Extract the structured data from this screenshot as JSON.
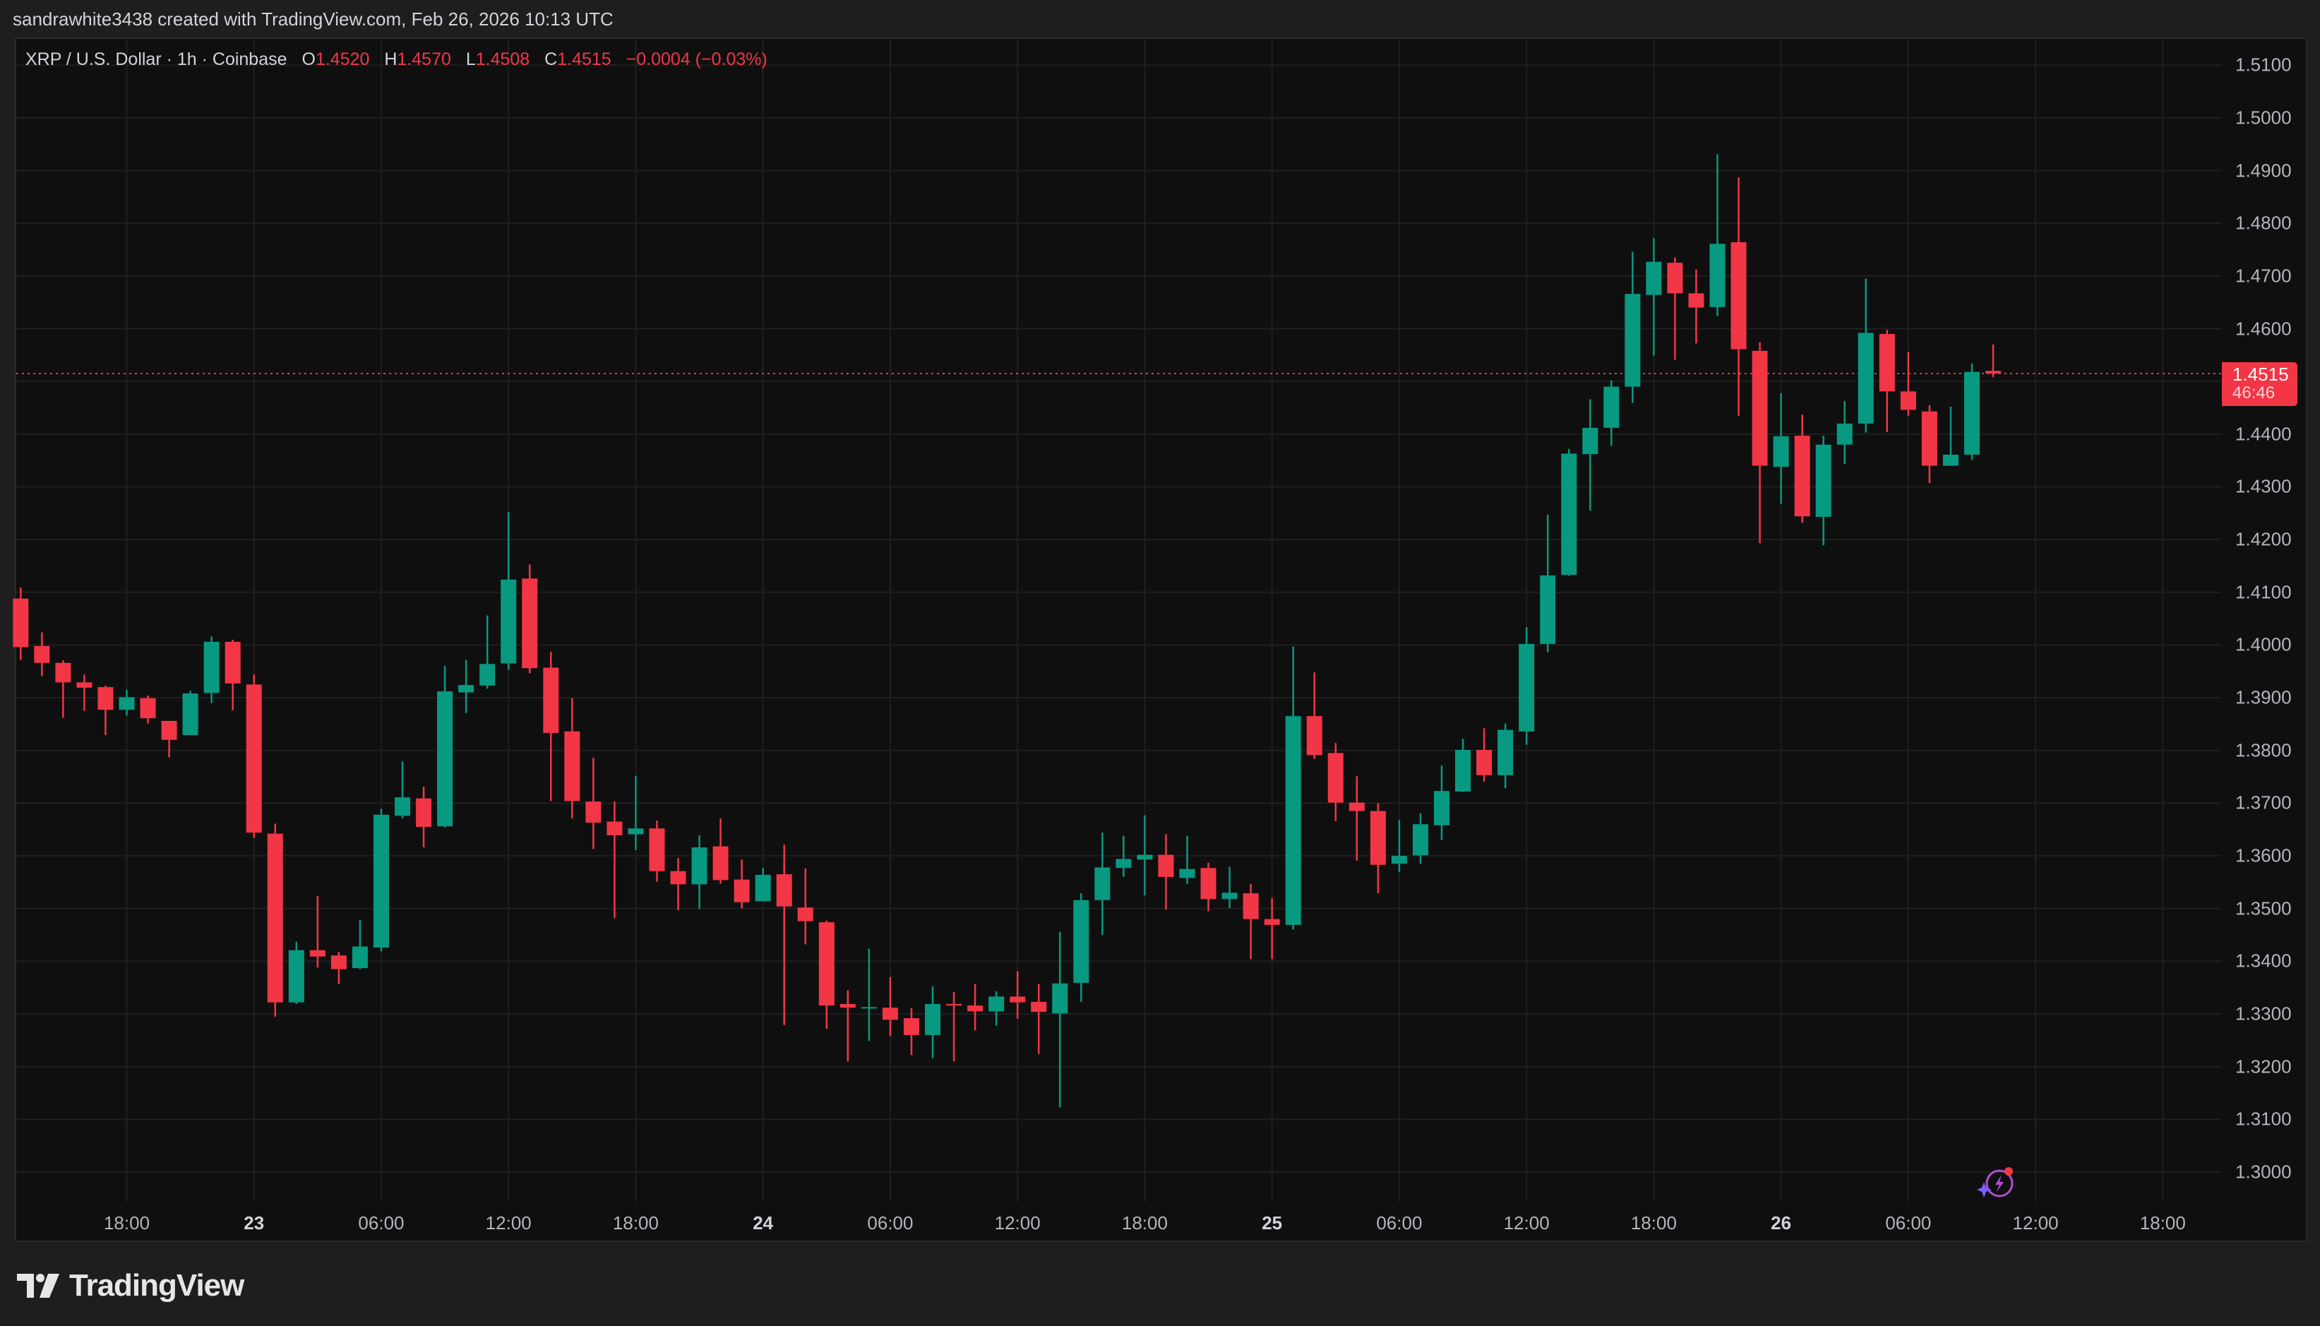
{
  "attribution": "sandrawhite3438 created with TradingView.com, Feb 26, 2026 10:13 UTC",
  "legend": {
    "symbol": "XRP / U.S. Dollar · 1h · Coinbase",
    "open_label": "O",
    "open": "1.4520",
    "high_label": "H",
    "high": "1.4570",
    "low_label": "L",
    "low": "1.4508",
    "close_label": "C",
    "close": "1.4515",
    "change": "−0.0004 (−0.03%)"
  },
  "last_price": {
    "value": "1.4515",
    "countdown": "46:46"
  },
  "logo": {
    "text": "TradingView",
    "icon": "tradingview-logo-icon"
  },
  "colors": {
    "up": "#089981",
    "down": "#f23645",
    "background": "#0f0f0f",
    "grid": "#1f1f1f",
    "assistant": "#b04fd6"
  },
  "chart_data": {
    "type": "candlestick",
    "title": "XRP / U.S. Dollar · 1h · Coinbase",
    "ylim": [
      1.295,
      1.515
    ],
    "grid": true,
    "y_ticks": [
      "1.5100",
      "1.5000",
      "1.4900",
      "1.4800",
      "1.4700",
      "1.4600",
      "1.4400",
      "1.4300",
      "1.4200",
      "1.4100",
      "1.4000",
      "1.3900",
      "1.3800",
      "1.3700",
      "1.3600",
      "1.3500",
      "1.3400",
      "1.3300",
      "1.3200",
      "1.3100",
      "1.3000"
    ],
    "x_ticks": [
      "18:00",
      "23",
      "06:00",
      "12:00",
      "18:00",
      "24",
      "06:00",
      "12:00",
      "18:00",
      "25",
      "06:00",
      "12:00",
      "18:00",
      "26",
      "06:00",
      "12:00",
      "18:00"
    ],
    "x_ticks_bold": [
      "23",
      "24",
      "25",
      "26"
    ],
    "current_price": 1.4515,
    "candles": [
      [
        1.4088,
        1.4109,
        1.3972,
        1.3996
      ],
      [
        1.3998,
        1.4024,
        1.3941,
        1.3966
      ],
      [
        1.3966,
        1.3971,
        1.3862,
        1.3929
      ],
      [
        1.3929,
        1.3944,
        1.3875,
        1.3919
      ],
      [
        1.392,
        1.3923,
        1.3829,
        1.3877
      ],
      [
        1.3877,
        1.3915,
        1.3866,
        1.3901
      ],
      [
        1.3899,
        1.3904,
        1.3851,
        1.3861
      ],
      [
        1.3856,
        1.3856,
        1.3787,
        1.382
      ],
      [
        1.3829,
        1.3913,
        1.3829,
        1.3908
      ],
      [
        1.3909,
        1.4016,
        1.389,
        1.4006
      ],
      [
        1.4006,
        1.401,
        1.3876,
        1.3927
      ],
      [
        1.3925,
        1.3944,
        1.3634,
        1.3644
      ],
      [
        1.3642,
        1.3661,
        1.3295,
        1.3322
      ],
      [
        1.3322,
        1.3437,
        1.3319,
        1.3421
      ],
      [
        1.3421,
        1.3524,
        1.3388,
        1.3409
      ],
      [
        1.3411,
        1.3418,
        1.3357,
        1.3385
      ],
      [
        1.3387,
        1.3479,
        1.3385,
        1.3428
      ],
      [
        1.3426,
        1.3689,
        1.3419,
        1.3678
      ],
      [
        1.3676,
        1.3779,
        1.3671,
        1.3711
      ],
      [
        1.3709,
        1.3731,
        1.3616,
        1.3655
      ],
      [
        1.3656,
        1.396,
        1.3654,
        1.3912
      ],
      [
        1.391,
        1.3972,
        1.3871,
        1.3924
      ],
      [
        1.3923,
        1.4056,
        1.3917,
        1.3964
      ],
      [
        1.3965,
        1.4252,
        1.3953,
        1.4124
      ],
      [
        1.4126,
        1.4153,
        1.3946,
        1.3956
      ],
      [
        1.3957,
        1.3987,
        1.3704,
        1.3833
      ],
      [
        1.3836,
        1.3899,
        1.3671,
        1.3704
      ],
      [
        1.3703,
        1.3786,
        1.3613,
        1.3663
      ],
      [
        1.3665,
        1.3703,
        1.3482,
        1.3639
      ],
      [
        1.3641,
        1.3752,
        1.3611,
        1.3652
      ],
      [
        1.3652,
        1.3667,
        1.3551,
        1.3571
      ],
      [
        1.3571,
        1.3596,
        1.3497,
        1.3546
      ],
      [
        1.3546,
        1.3639,
        1.3499,
        1.3616
      ],
      [
        1.3618,
        1.3671,
        1.3547,
        1.3554
      ],
      [
        1.3555,
        1.3593,
        1.35,
        1.3512
      ],
      [
        1.3514,
        1.3577,
        1.3514,
        1.3564
      ],
      [
        1.3565,
        1.3621,
        1.3279,
        1.3504
      ],
      [
        1.3502,
        1.3576,
        1.3432,
        1.3476
      ],
      [
        1.3474,
        1.3477,
        1.3272,
        1.3316
      ],
      [
        1.3319,
        1.3345,
        1.321,
        1.3312
      ],
      [
        1.3312,
        1.3424,
        1.3249,
        1.3313
      ],
      [
        1.3312,
        1.337,
        1.3258,
        1.3289
      ],
      [
        1.3292,
        1.3311,
        1.3222,
        1.326
      ],
      [
        1.326,
        1.3352,
        1.3216,
        1.3319
      ],
      [
        1.3319,
        1.3342,
        1.321,
        1.3316
      ],
      [
        1.3316,
        1.3357,
        1.3269,
        1.3305
      ],
      [
        1.3305,
        1.3343,
        1.3278,
        1.3333
      ],
      [
        1.3333,
        1.3381,
        1.3291,
        1.3322
      ],
      [
        1.3323,
        1.3357,
        1.3224,
        1.3304
      ],
      [
        1.3301,
        1.3456,
        1.3123,
        1.3358
      ],
      [
        1.3359,
        1.3529,
        1.3323,
        1.3516
      ],
      [
        1.3516,
        1.3644,
        1.345,
        1.3578
      ],
      [
        1.3577,
        1.3638,
        1.356,
        1.3594
      ],
      [
        1.3593,
        1.3677,
        1.3525,
        1.3602
      ],
      [
        1.3602,
        1.3641,
        1.3498,
        1.356
      ],
      [
        1.3558,
        1.3638,
        1.3547,
        1.3575
      ],
      [
        1.3577,
        1.3587,
        1.3495,
        1.3518
      ],
      [
        1.3518,
        1.3579,
        1.3501,
        1.353
      ],
      [
        1.3529,
        1.3547,
        1.3404,
        1.348
      ],
      [
        1.348,
        1.352,
        1.3404,
        1.3469
      ],
      [
        1.3469,
        1.3997,
        1.346,
        1.3865
      ],
      [
        1.3865,
        1.3948,
        1.3784,
        1.3791
      ],
      [
        1.3795,
        1.3814,
        1.3666,
        1.3701
      ],
      [
        1.3701,
        1.3751,
        1.3591,
        1.3685
      ],
      [
        1.3685,
        1.37,
        1.3529,
        1.3583
      ],
      [
        1.3585,
        1.3668,
        1.3569,
        1.36
      ],
      [
        1.3601,
        1.3681,
        1.3585,
        1.366
      ],
      [
        1.3658,
        1.3771,
        1.363,
        1.3723
      ],
      [
        1.3722,
        1.3822,
        1.3721,
        1.3801
      ],
      [
        1.3801,
        1.3842,
        1.3741,
        1.3753
      ],
      [
        1.3753,
        1.3851,
        1.3728,
        1.3839
      ],
      [
        1.3836,
        1.4034,
        1.3811,
        1.4002
      ],
      [
        1.4002,
        1.4247,
        1.3986,
        1.4132
      ],
      [
        1.4133,
        1.4372,
        1.4131,
        1.4363
      ],
      [
        1.4362,
        1.4466,
        1.4255,
        1.4412
      ],
      [
        1.4412,
        1.4502,
        1.4378,
        1.449
      ],
      [
        1.449,
        1.4746,
        1.4459,
        1.4666
      ],
      [
        1.4664,
        1.4772,
        1.4549,
        1.4727
      ],
      [
        1.4725,
        1.4735,
        1.4541,
        1.4667
      ],
      [
        1.4667,
        1.4712,
        1.4572,
        1.464
      ],
      [
        1.4641,
        1.4931,
        1.4624,
        1.4761
      ],
      [
        1.4764,
        1.4887,
        1.4435,
        1.4561
      ],
      [
        1.4558,
        1.4574,
        1.4193,
        1.434
      ],
      [
        1.4338,
        1.4478,
        1.4268,
        1.4396
      ],
      [
        1.4397,
        1.4437,
        1.4232,
        1.4244
      ],
      [
        1.4243,
        1.4397,
        1.4189,
        1.438
      ],
      [
        1.438,
        1.4463,
        1.4343,
        1.442
      ],
      [
        1.442,
        1.4695,
        1.4403,
        1.4592
      ],
      [
        1.459,
        1.4598,
        1.4404,
        1.4481
      ],
      [
        1.4481,
        1.4556,
        1.4435,
        1.4446
      ],
      [
        1.4443,
        1.4455,
        1.4307,
        1.434
      ],
      [
        1.434,
        1.4452,
        1.434,
        1.4361
      ],
      [
        1.4361,
        1.4534,
        1.4351,
        1.4518
      ],
      [
        1.452,
        1.457,
        1.4508,
        1.4515
      ]
    ]
  }
}
